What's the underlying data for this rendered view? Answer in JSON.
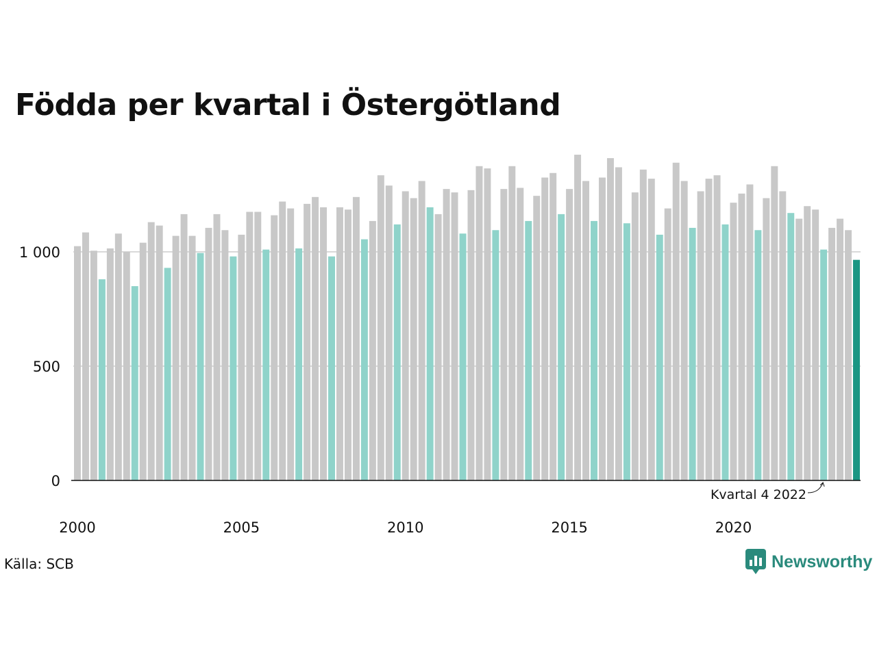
{
  "title": "Födda per kvartal i Östergötland",
  "source": "Källa: SCB",
  "brand": "Newsworthy",
  "chart_data": {
    "type": "bar",
    "title": "Födda per kvartal i Östergötland",
    "xlabel": "",
    "ylabel": "",
    "ylim": [
      0,
      1400
    ],
    "yticks": [
      {
        "value": 0,
        "label": "0"
      },
      {
        "value": 500,
        "label": "500"
      },
      {
        "value": 1000,
        "label": "1 000"
      }
    ],
    "xticks": [
      "2000",
      "2005",
      "2010",
      "2015",
      "2020"
    ],
    "start_year": 2000,
    "grid": true,
    "colors": {
      "default": "#c8c8c8",
      "q4": "#8fd3ca",
      "latest": "#1a9683",
      "grid": "#d9d9d9",
      "axis": "#111111",
      "brand": "#2a8a7c"
    },
    "annotation": "Kvartal 4 2022",
    "values": [
      1025,
      1085,
      1005,
      880,
      1015,
      1080,
      1000,
      850,
      1040,
      1130,
      1115,
      930,
      1070,
      1165,
      1070,
      995,
      1105,
      1165,
      1095,
      980,
      1075,
      1175,
      1175,
      1010,
      1160,
      1220,
      1190,
      1015,
      1210,
      1240,
      1195,
      980,
      1195,
      1185,
      1240,
      1055,
      1135,
      1335,
      1290,
      1120,
      1265,
      1235,
      1310,
      1195,
      1165,
      1275,
      1260,
      1080,
      1270,
      1375,
      1365,
      1095,
      1275,
      1375,
      1280,
      1135,
      1245,
      1325,
      1345,
      1165,
      1275,
      1425,
      1310,
      1135,
      1325,
      1410,
      1370,
      1125,
      1260,
      1360,
      1320,
      1075,
      1190,
      1390,
      1310,
      1105,
      1265,
      1320,
      1335,
      1120,
      1215,
      1255,
      1295,
      1095,
      1235,
      1375,
      1265,
      1170,
      1145,
      1200,
      1185,
      1010,
      1105,
      1145,
      1095,
      965
    ]
  }
}
